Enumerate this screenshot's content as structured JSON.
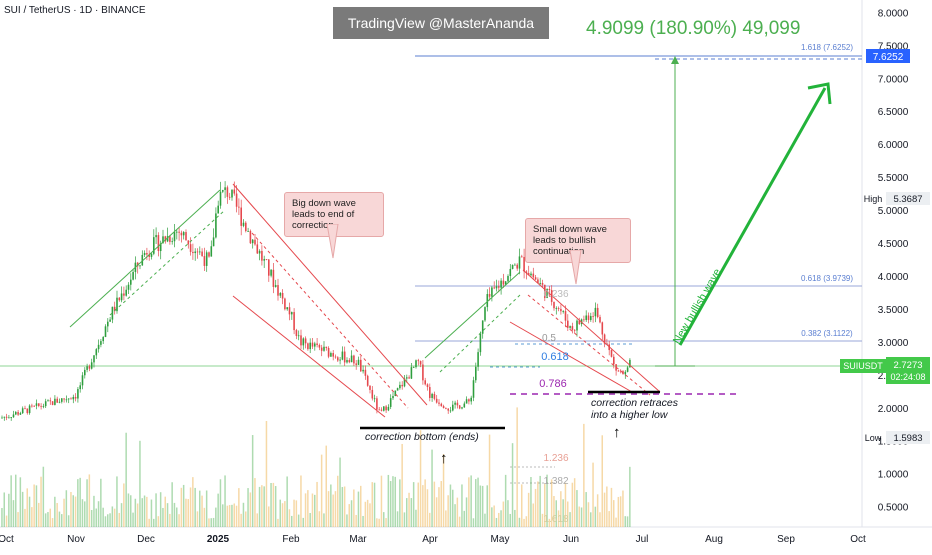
{
  "header": {
    "title": "SUI / TetherUS · 1D · BINANCE",
    "watermark": "TradingView @MasterAnanda",
    "measure_label": "4.9099 (180.90%) 49,099"
  },
  "annotations": {
    "callout_big": "Big down wave leads to end of correction",
    "callout_small": "Small down wave leads to bullish continuation",
    "bottom_note": "correction bottom (ends)",
    "higher_low_note": "correction retraces into a higher low",
    "wave_label": "New bullish wave"
  },
  "fib": {
    "top": "1.618 (7.6252)",
    "upper": "0.618 (3.9739)",
    "mid": "0.382 (3.1122)",
    "inner": [
      "0.5",
      "0.618",
      "0.786"
    ],
    "inner_top": "0.236",
    "lower": [
      "1.236",
      "1.382",
      "1.618"
    ]
  },
  "price_axis": {
    "ticks": [
      "8.0000",
      "7.5000",
      "7.0000",
      "6.5000",
      "6.0000",
      "5.5000",
      "5.0000",
      "4.5000",
      "4.0000",
      "3.5000",
      "3.0000",
      "2.5000",
      "2.0000",
      "1.5000",
      "1.0000",
      "0.5000"
    ],
    "high_label": "High",
    "high_value": "5.3687",
    "low_label": "Low",
    "low_value": "1.5983",
    "symbol": "SUIUSDT",
    "last_price": "2.7273",
    "countdown": "02:24:08",
    "target_value": "7.6252"
  },
  "time_axis": {
    "labels": [
      "Oct",
      "Nov",
      "Dec",
      "2025",
      "Feb",
      "Mar",
      "Apr",
      "May",
      "Jun",
      "Jul",
      "Aug",
      "Sep",
      "Oct"
    ]
  },
  "colors": {
    "up": "#26a69a",
    "down": "#ef5350",
    "candle_up": "#2e9e3e",
    "candle_down": "#e5484d",
    "green_line": "#4caf50",
    "fib_blue": "#5b7fd1",
    "purple": "#9c27b0",
    "last_price_bg": "#43c94a"
  },
  "chart_data": {
    "type": "candlestick",
    "symbol": "SUI / TetherUS",
    "interval": "1D",
    "exchange": "BINANCE",
    "x_labels": [
      "Oct",
      "Nov",
      "Dec",
      "2025",
      "Feb",
      "Mar",
      "Apr",
      "May",
      "Jun",
      "Jul",
      "Aug",
      "Sep",
      "Oct"
    ],
    "y_ticks": [
      8.0,
      7.5,
      7.0,
      6.5,
      6.0,
      5.5,
      5.0,
      4.5,
      4.0,
      3.5,
      3.0,
      2.5,
      2.0,
      1.5,
      1.0,
      0.5
    ],
    "y_range": [
      0.35,
      8.15
    ],
    "close_path": [
      {
        "x": "Oct",
        "close": 1.85
      },
      {
        "x": "Nov",
        "close": 2.2
      },
      {
        "x": "Dec",
        "close": 4.4
      },
      {
        "x": "2025",
        "close": 5.2
      },
      {
        "x": "Feb",
        "close": 3.4
      },
      {
        "x": "Mar",
        "close": 2.7
      },
      {
        "x": "Apr",
        "close": 2.2
      },
      {
        "x": "May",
        "close": 3.9
      },
      {
        "x": "Jun",
        "close": 3.2
      },
      {
        "x": "Jul",
        "close": 2.7273
      }
    ],
    "high": 5.3687,
    "low": 1.5983,
    "last": 2.7273,
    "target": 7.6252,
    "projection": {
      "value": 4.9099,
      "percent": 180.9,
      "ticks": 49099
    },
    "fib_levels": [
      {
        "label": "1.618",
        "value": 7.6252
      },
      {
        "label": "0.618",
        "value": 3.9739
      },
      {
        "label": "0.382",
        "value": 3.1122
      }
    ]
  }
}
